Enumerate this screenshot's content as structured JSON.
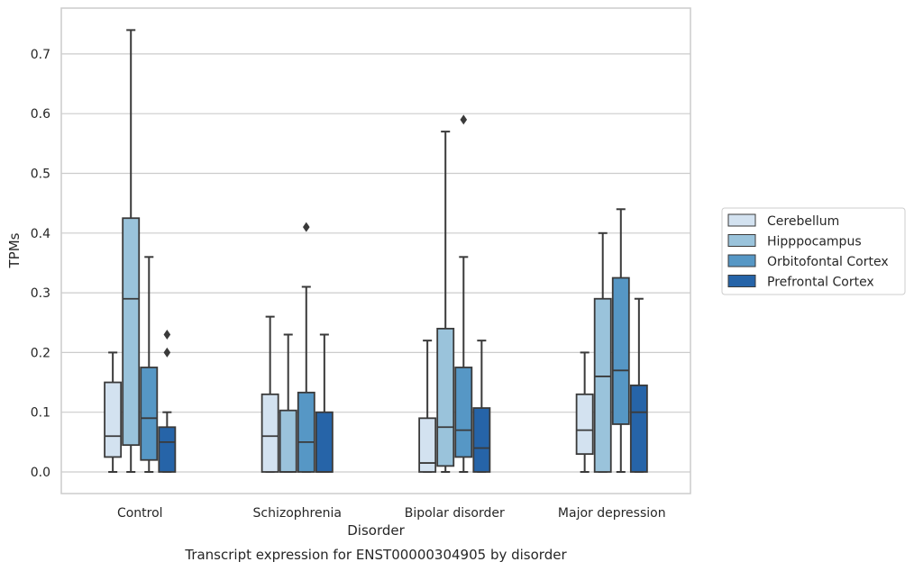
{
  "chart_data": {
    "type": "box",
    "title": "Transcript expression for ENST00000304905 by disorder",
    "xlabel": "Disorder",
    "ylabel": "TPMs",
    "ylim": [
      -0.036,
      0.78
    ],
    "yticks": [
      0.0,
      0.1,
      0.2,
      0.3,
      0.4,
      0.5,
      0.6,
      0.7
    ],
    "ytick_labels": [
      "0.0",
      "0.1",
      "0.2",
      "0.3",
      "0.4",
      "0.5",
      "0.6",
      "0.7"
    ],
    "grid": true,
    "legend_position": "right",
    "categories": [
      "Control",
      "Schizophrenia",
      "Bipolar disorder",
      "Major depression"
    ],
    "series": [
      {
        "name": "Cerebellum",
        "color": "#d3e2f0",
        "boxes": [
          {
            "whislo": 0.0,
            "q1": 0.025,
            "med": 0.06,
            "q3": 0.15,
            "whishi": 0.2,
            "fliers": []
          },
          {
            "whislo": 0.0,
            "q1": 0.0,
            "med": 0.06,
            "q3": 0.13,
            "whishi": 0.26,
            "fliers": []
          },
          {
            "whislo": 0.0,
            "q1": 0.0,
            "med": 0.015,
            "q3": 0.09,
            "whishi": 0.22,
            "fliers": []
          },
          {
            "whislo": 0.0,
            "q1": 0.03,
            "med": 0.07,
            "q3": 0.13,
            "whishi": 0.2,
            "fliers": []
          }
        ]
      },
      {
        "name": "Hipppocampus",
        "color": "#9ac3db",
        "boxes": [
          {
            "whislo": 0.0,
            "q1": 0.045,
            "med": 0.29,
            "q3": 0.425,
            "whishi": 0.74,
            "fliers": []
          },
          {
            "whislo": 0.0,
            "q1": 0.0,
            "med": 0.0,
            "q3": 0.103,
            "whishi": 0.23,
            "fliers": []
          },
          {
            "whislo": 0.0,
            "q1": 0.01,
            "med": 0.075,
            "q3": 0.24,
            "whishi": 0.57,
            "fliers": []
          },
          {
            "whislo": 0.0,
            "q1": 0.0,
            "med": 0.16,
            "q3": 0.29,
            "whishi": 0.4,
            "fliers": []
          }
        ]
      },
      {
        "name": "Orbitofontal Cortex",
        "color": "#5697c5",
        "boxes": [
          {
            "whislo": 0.0,
            "q1": 0.02,
            "med": 0.09,
            "q3": 0.175,
            "whishi": 0.36,
            "fliers": []
          },
          {
            "whislo": 0.0,
            "q1": 0.0,
            "med": 0.05,
            "q3": 0.133,
            "whishi": 0.31,
            "fliers": [
              0.41
            ]
          },
          {
            "whislo": 0.0,
            "q1": 0.025,
            "med": 0.07,
            "q3": 0.175,
            "whishi": 0.36,
            "fliers": [
              0.59
            ]
          },
          {
            "whislo": 0.0,
            "q1": 0.08,
            "med": 0.17,
            "q3": 0.325,
            "whishi": 0.44,
            "fliers": []
          }
        ]
      },
      {
        "name": "Prefrontal Cortex",
        "color": "#2664a8",
        "boxes": [
          {
            "whislo": 0.0,
            "q1": 0.0,
            "med": 0.05,
            "q3": 0.075,
            "whishi": 0.1,
            "fliers": [
              0.2,
              0.23
            ]
          },
          {
            "whislo": 0.0,
            "q1": 0.0,
            "med": 0.0,
            "q3": 0.1,
            "whishi": 0.23,
            "fliers": []
          },
          {
            "whislo": 0.0,
            "q1": 0.0,
            "med": 0.04,
            "q3": 0.107,
            "whishi": 0.22,
            "fliers": []
          },
          {
            "whislo": 0.0,
            "q1": 0.0,
            "med": 0.1,
            "q3": 0.145,
            "whishi": 0.29,
            "fliers": []
          }
        ]
      }
    ]
  }
}
